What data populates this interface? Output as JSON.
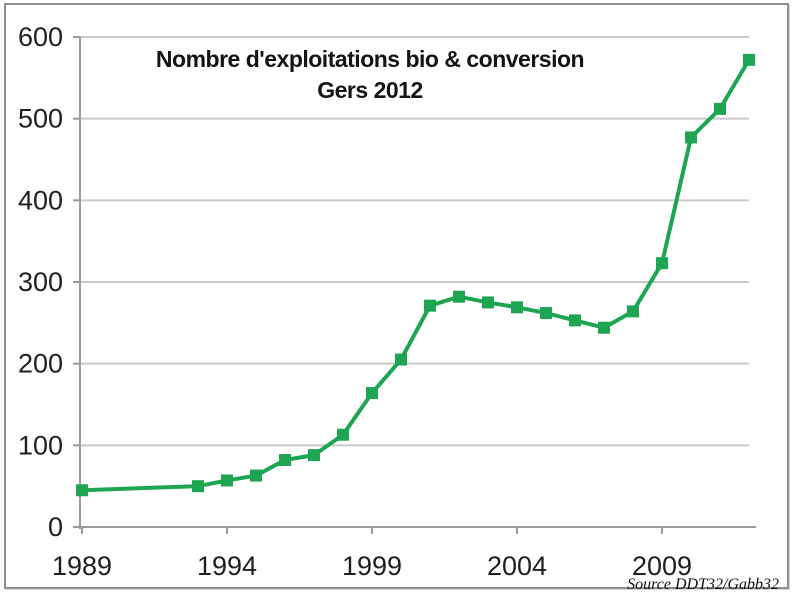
{
  "chart_data": {
    "type": "line",
    "title_line1": "Nombre d'exploitations bio & conversion",
    "title_line2": "Gers 2012",
    "x": [
      1989,
      1993,
      1994,
      1995,
      1996,
      1997,
      1998,
      1999,
      2000,
      2001,
      2002,
      2003,
      2004,
      2005,
      2006,
      2007,
      2008,
      2009,
      2010,
      2011,
      2012
    ],
    "series": [
      {
        "name": "Nombre d'exploitations bio & conversion Gers",
        "values": [
          45,
          50,
          57,
          63,
          82,
          88,
          113,
          164,
          205,
          271,
          282,
          275,
          269,
          262,
          253,
          244,
          264,
          323,
          477,
          512,
          572
        ]
      }
    ],
    "xlabel": "",
    "ylabel": "",
    "xlim": [
      1989,
      2012
    ],
    "ylim": [
      0,
      600
    ],
    "y_ticks": [
      "0",
      "100",
      "200",
      "300",
      "400",
      "500",
      "600"
    ],
    "x_ticks": [
      "1989",
      "1994",
      "1999",
      "2004",
      "2009"
    ],
    "grid": true,
    "legend_position": "none",
    "marker": "square",
    "line_color": "#1da552",
    "grid_color": "#c9c9c9",
    "axis_color": "#9b9b9b",
    "tick_label_color": "#1f1f1f"
  },
  "source_note": "Source DDT32/Gabb32"
}
